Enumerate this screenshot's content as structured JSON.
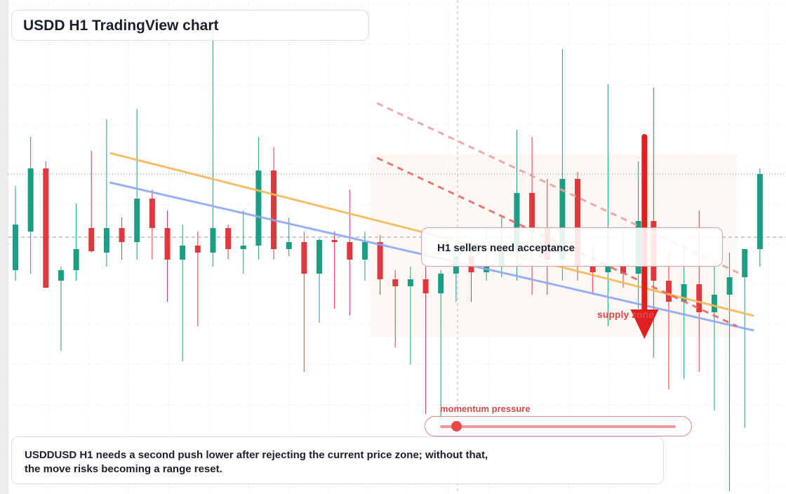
{
  "chart_data": {
    "type": "candlestick",
    "title": "USDD H1 TradingView chart",
    "ylim": [
      0.99596,
      1.003
    ],
    "grid": true,
    "up_color": "#1a9e84",
    "down_color": "#e0383e",
    "open": [
      0.99915,
      0.9997,
      1.0006,
      0.999,
      0.99915,
      0.99975,
      0.9994,
      0.99975,
      0.99955,
      1.00017,
      0.99975,
      0.9993,
      0.9995,
      0.9994,
      0.99975,
      0.99945,
      0.9995,
      1.00057,
      0.99945,
      0.99955,
      0.9991,
      0.99958,
      0.99955,
      0.9993,
      0.99955,
      0.99902,
      0.99892,
      0.99902,
      0.99882,
      0.9991,
      0.99935,
      0.99912,
      0.9992,
      0.99945,
      1.00025,
      0.99975,
      0.9993,
      1.00045,
      0.9992,
      0.99912,
      0.9992,
      0.9991,
      0.99985,
      0.999,
      0.9987,
      0.99895,
      0.99855,
      0.9988,
      0.99905,
      0.99945
    ],
    "high": [
      1.00035,
      1.00105,
      1.0007,
      0.9992,
      1.0001,
      1.00085,
      1.0013,
      0.9999,
      1.00145,
      1.0003,
      1.0,
      0.9998,
      0.9997,
      1.0026,
      0.9998,
      1.0,
      1.00105,
      1.0009,
      0.9999,
      0.9997,
      0.9996,
      0.9997,
      1.0003,
      0.9997,
      0.99965,
      0.99915,
      0.9992,
      0.9992,
      0.99915,
      0.99955,
      0.9996,
      0.9997,
      0.9999,
      1.00115,
      1.00105,
      1.00045,
      1.0023,
      1.00055,
      0.9995,
      1.0018,
      0.9997,
      1.0007,
      1.00175,
      0.9994,
      0.9995,
      1.0,
      0.9992,
      0.9994,
      0.9994,
      1.0006
    ],
    "low": [
      0.999,
      0.9991,
      0.9989,
      0.998,
      0.999,
      0.9994,
      0.9992,
      0.9993,
      0.9993,
      0.9993,
      0.9987,
      0.99785,
      0.99835,
      0.9992,
      0.9993,
      0.9991,
      0.9993,
      0.9993,
      0.99935,
      0.9977,
      0.9984,
      0.9986,
      0.9985,
      0.999,
      0.9988,
      0.99805,
      0.9978,
      0.9971,
      0.997,
      0.9987,
      0.9987,
      0.999,
      0.99905,
      0.999,
      0.9988,
      0.9988,
      0.999,
      0.999,
      0.9988,
      0.99835,
      0.9989,
      0.9986,
      0.9979,
      0.99745,
      0.9976,
      0.9977,
      0.99715,
      0.996,
      0.9969,
      0.9992
    ],
    "close": [
      0.9998,
      1.0006,
      0.9989,
      0.99915,
      0.99945,
      0.99942,
      0.99975,
      0.99955,
      1.00017,
      0.99975,
      0.9993,
      0.9995,
      0.9994,
      0.99975,
      0.99945,
      0.9995,
      1.00057,
      0.99945,
      0.99955,
      0.9991,
      0.99958,
      0.99955,
      0.9993,
      0.99955,
      0.99902,
      0.99892,
      0.99902,
      0.99882,
      0.9991,
      0.99935,
      0.99912,
      0.9992,
      0.99945,
      1.00025,
      0.99975,
      0.9993,
      1.00045,
      0.9992,
      0.99912,
      0.9992,
      0.9991,
      0.99985,
      0.999,
      0.9987,
      0.99895,
      0.99855,
      0.9988,
      0.99905,
      0.99945,
      1.00052
    ],
    "trendlines": [
      {
        "color": "#f5b95a",
        "dashed": false,
        "x": [
          6.2,
          48.6
        ],
        "y": [
          1.00082,
          0.9985
        ]
      },
      {
        "color": "#8fa8ee",
        "dashed": false,
        "x": [
          6.2,
          48.6
        ],
        "y": [
          1.0004,
          0.99829
        ]
      },
      {
        "color": "#eea0a0",
        "dashed": true,
        "x": [
          23.8,
          47.7
        ],
        "y": [
          1.00153,
          0.9991
        ]
      },
      {
        "color": "#e46a6a",
        "dashed": true,
        "x": [
          23.8,
          47.5
        ],
        "y": [
          1.00075,
          0.99835
        ]
      }
    ],
    "levels": [
      {
        "value": 1.00052,
        "color": "#5a9a8a"
      },
      {
        "value": 0.99962,
        "color": "#9a9a9a"
      }
    ],
    "arrow": {
      "x": 41.4,
      "from": 1.00105,
      "to": 0.99817,
      "color": "#e02020"
    },
    "callout": "H1 sellers need acceptance",
    "zone_label": "supply zone",
    "momentum": {
      "label": "momentum pressure",
      "value": 0.07
    },
    "note": [
      "USDDUSD H1 needs a second push lower after rejecting the current price zone; without that,",
      "the move risks becoming a range reset."
    ]
  }
}
